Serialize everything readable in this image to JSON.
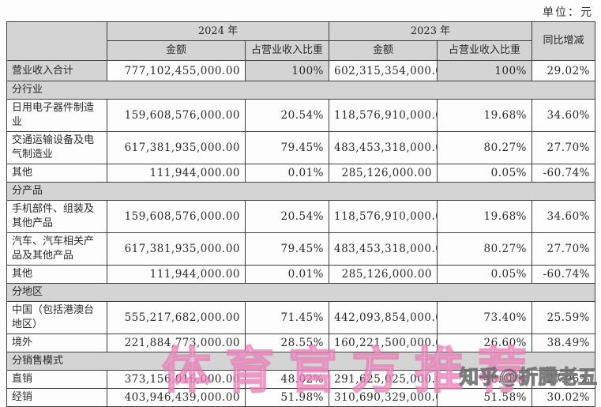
{
  "unit_label": "单位：元",
  "watermarks": {
    "center": "体育官方推荐",
    "zhihu": "知乎@折腾老五"
  },
  "colors": {
    "header_bg": "#d4d4d4",
    "border": "#3f3f3f",
    "watermark_pink": "#e269aa",
    "watermark_gray": "#5f5f5f"
  },
  "table": {
    "headers": {
      "year_2024": "2024 年",
      "year_2023": "2023 年",
      "yoy": "同比增减",
      "amount": "金额",
      "share": "占营业收入比重"
    },
    "rows": [
      {
        "type": "total",
        "label": "营业收入合计",
        "amount_2024": "777,102,455,000.00",
        "share_2024": "100%",
        "amount_2023": "602,315,354,000.00",
        "share_2023": "100%",
        "yoy": "29.02%"
      },
      {
        "type": "section",
        "label": "分行业"
      },
      {
        "type": "item",
        "label": "日用电子器件制造业",
        "amount_2024": "159,608,576,000.00",
        "share_2024": "20.54%",
        "amount_2023": "118,576,910,000.00",
        "share_2023": "19.68%",
        "yoy": "34.60%"
      },
      {
        "type": "item",
        "label": "交通运输设备及电气制造业",
        "amount_2024": "617,381,935,000.00",
        "share_2024": "79.45%",
        "amount_2023": "483,453,318,000.00",
        "share_2023": "80.27%",
        "yoy": "27.70%"
      },
      {
        "type": "item",
        "label": "其他",
        "amount_2024": "111,944,000.00",
        "share_2024": "0.01%",
        "amount_2023": "285,126,000.00",
        "share_2023": "0.05%",
        "yoy": "-60.74%"
      },
      {
        "type": "section",
        "label": "分产品"
      },
      {
        "type": "item",
        "label": "手机部件、组装及其他产品",
        "amount_2024": "159,608,576,000.00",
        "share_2024": "20.54%",
        "amount_2023": "118,576,910,000.00",
        "share_2023": "19.68%",
        "yoy": "34.60%"
      },
      {
        "type": "item",
        "label": "汽车、汽车相关产品及其他产品",
        "amount_2024": "617,381,935,000.00",
        "share_2024": "79.45%",
        "amount_2023": "483,453,318,000.00",
        "share_2023": "80.27%",
        "yoy": "27.70%"
      },
      {
        "type": "item",
        "label": "其他",
        "amount_2024": "111,944,000.00",
        "share_2024": "0.01%",
        "amount_2023": "285,126,000.00",
        "share_2023": "0.05%",
        "yoy": "-60.74%"
      },
      {
        "type": "section",
        "label": "分地区"
      },
      {
        "type": "item",
        "label": "中国（包括港澳台地区）",
        "amount_2024": "555,217,682,000.00",
        "share_2024": "71.45%",
        "amount_2023": "442,093,854,000.00",
        "share_2023": "73.40%",
        "yoy": "25.59%"
      },
      {
        "type": "item",
        "label": "境外",
        "amount_2024": "221,884,773,000.00",
        "share_2024": "28.55%",
        "amount_2023": "160,221,500,000.00",
        "share_2023": "26.60%",
        "yoy": "38.49%"
      },
      {
        "type": "section",
        "label": "分销售模式"
      },
      {
        "type": "item",
        "label": "直销",
        "amount_2024": "373,156,016,000.00",
        "share_2024": "48.02%",
        "amount_2023": "291,625,025,000.00",
        "share_2023": "48.42%",
        "yoy": "27.96%"
      },
      {
        "type": "item",
        "label": "经销",
        "amount_2024": "403,946,439,000.00",
        "share_2024": "51.98%",
        "amount_2023": "310,690,329,000.00",
        "share_2023": "51.58%",
        "yoy": "30.02%"
      }
    ]
  }
}
